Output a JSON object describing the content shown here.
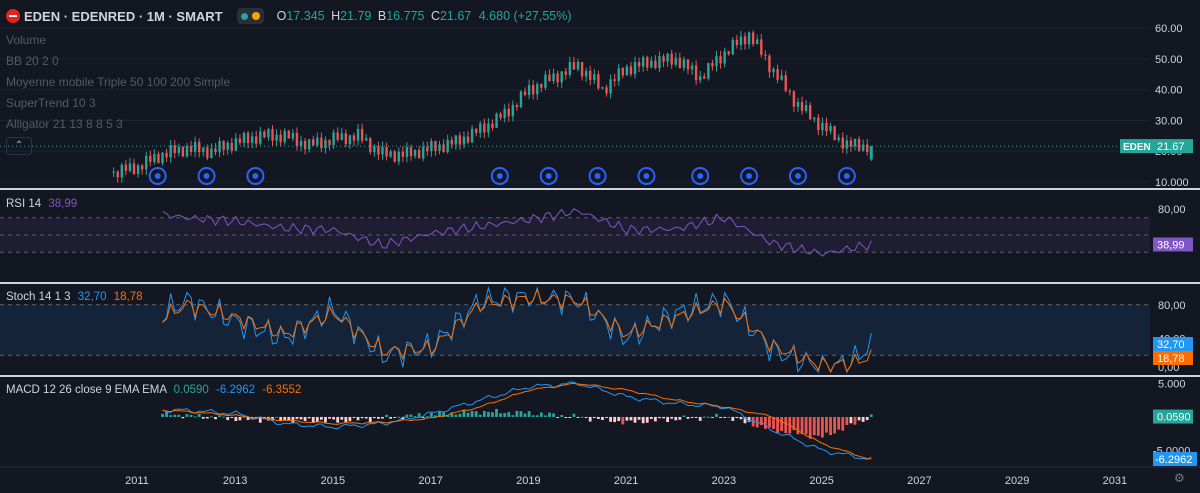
{
  "header": {
    "symbol_title": "EDEN · EDENRED · 1M · SMART",
    "ohlc": {
      "o_label": "O",
      "o": "17.345",
      "h_label": "H",
      "h": "21.79",
      "b_label": "B",
      "b": "16.775",
      "c_label": "C",
      "c": "21.67",
      "change": "4.680 (+27,55%)"
    }
  },
  "main_indicators": [
    "Volume",
    "BB 20 2 0",
    "Moyenne mobile Triple 50 100 200 Simple",
    "SuperTrend 10 3",
    "Alligator 21 13 8 8 5 3"
  ],
  "price_axis": {
    "ticks": [
      "60.00",
      "50.00",
      "40.00",
      "30.00",
      "20.00",
      "10.000"
    ],
    "ticker_tag": "EDEN",
    "last_price_tag": "21.67"
  },
  "rsi_panel": {
    "label": "RSI 14",
    "value": "38,99",
    "ticks": [
      "80,00"
    ],
    "tag": "38,99",
    "color": "#7e57c2"
  },
  "stoch_panel": {
    "label": "Stoch 14 1 3",
    "k_value": "32,70",
    "d_value": "18,78",
    "ticks": [
      "80,00",
      "40,00",
      "0,00"
    ],
    "k_tag": "32,70",
    "d_tag": "18,78",
    "k_color": "#2196f3",
    "d_color": "#ff6d00"
  },
  "macd_panel": {
    "label": "MACD 12 26 close 9 EMA EMA",
    "hist_value": "0.0590",
    "macd_value": "-6.2962",
    "signal_value": "-6.3552",
    "ticks": [
      "5.000",
      "-5.0000"
    ],
    "hist_tag": "0.0590",
    "macd_tag": "-6.2962"
  },
  "time_axis": {
    "labels": [
      "2011",
      "2013",
      "2015",
      "2017",
      "2019",
      "2021",
      "2023",
      "2025",
      "2027",
      "2029",
      "2031"
    ]
  },
  "colors": {
    "background": "#131722",
    "up": "#26a69a",
    "down": "#ef5350",
    "marker": "#2962ff"
  },
  "chart_data": [
    {
      "type": "candlestick",
      "series_name": "EDEN",
      "x": [
        2010.5,
        2011,
        2011.5,
        2012,
        2012.5,
        2013,
        2013.5,
        2014,
        2014.5,
        2015,
        2015.5,
        2016,
        2016.5,
        2017,
        2017.5,
        2018,
        2018.5,
        2019,
        2019.5,
        2020,
        2020.5,
        2021,
        2021.5,
        2022,
        2022.5,
        2023,
        2023.5,
        2024,
        2024.5,
        2025,
        2025.5,
        2026
      ],
      "values": [
        13,
        15,
        19,
        21,
        20,
        23,
        25,
        25,
        22,
        24,
        25,
        19,
        19,
        21,
        23,
        27,
        32,
        40,
        44,
        48,
        40,
        47,
        49,
        50,
        44,
        52,
        58,
        46,
        35,
        28,
        22,
        21.67
      ],
      "last": {
        "open": 17.345,
        "high": 21.79,
        "low": 16.775,
        "close": 21.67
      },
      "xlim": [
        2009.3,
        2031.6
      ],
      "ylim": [
        10,
        62
      ]
    },
    {
      "type": "line",
      "series_name": "RSI 14",
      "x": [
        2011.5,
        2012,
        2013,
        2014,
        2015,
        2016,
        2017,
        2018,
        2019,
        2020,
        2021,
        2022,
        2023,
        2024,
        2025,
        2026
      ],
      "values": [
        74,
        70,
        66,
        58,
        56,
        38,
        52,
        60,
        68,
        78,
        56,
        57,
        70,
        40,
        28,
        38.99
      ],
      "ylim": [
        0,
        100
      ]
    },
    {
      "type": "line",
      "series": [
        {
          "name": "K",
          "values": [
            70,
            85,
            60,
            40,
            75,
            20,
            30,
            85,
            90,
            85,
            40,
            70,
            85,
            25,
            5,
            12,
            32.7
          ]
        },
        {
          "name": "D",
          "values": [
            65,
            80,
            65,
            45,
            70,
            25,
            28,
            80,
            88,
            85,
            45,
            65,
            82,
            30,
            8,
            10,
            18.78
          ]
        }
      ],
      "x": [
        2011.5,
        2012,
        2013,
        2014,
        2015,
        2016,
        2017,
        2018,
        2019,
        2020,
        2021,
        2022,
        2023,
        2024,
        2025,
        2025.6,
        2026
      ],
      "ylim": [
        0,
        100
      ]
    },
    {
      "type": "line",
      "series": [
        {
          "name": "MACD",
          "values": [
            1,
            1,
            0.5,
            -1,
            -1.5,
            -1,
            0.5,
            2.5,
            4.5,
            5,
            3,
            2,
            1.5,
            -2,
            -5,
            -6.2962
          ]
        },
        {
          "name": "Signal",
          "values": [
            1,
            0.8,
            0.2,
            -0.5,
            -1,
            -0.8,
            -0.2,
            1.5,
            4,
            5,
            4,
            2.5,
            1.5,
            0,
            -4,
            -6.3552
          ]
        },
        {
          "name": "Histogram",
          "values": [
            0.5,
            0.2,
            -0.3,
            -0.5,
            -0.6,
            -0.2,
            0.4,
            0.8,
            0.6,
            0,
            -0.8,
            -0.3,
            0.1,
            -2,
            -3,
            0.059
          ]
        }
      ],
      "x": [
        2011.5,
        2012,
        2013,
        2014,
        2015,
        2016,
        2017,
        2018,
        2019,
        2020,
        2021,
        2022,
        2023,
        2024,
        2025,
        2026
      ],
      "ylim": [
        -7,
        5.5
      ]
    }
  ]
}
